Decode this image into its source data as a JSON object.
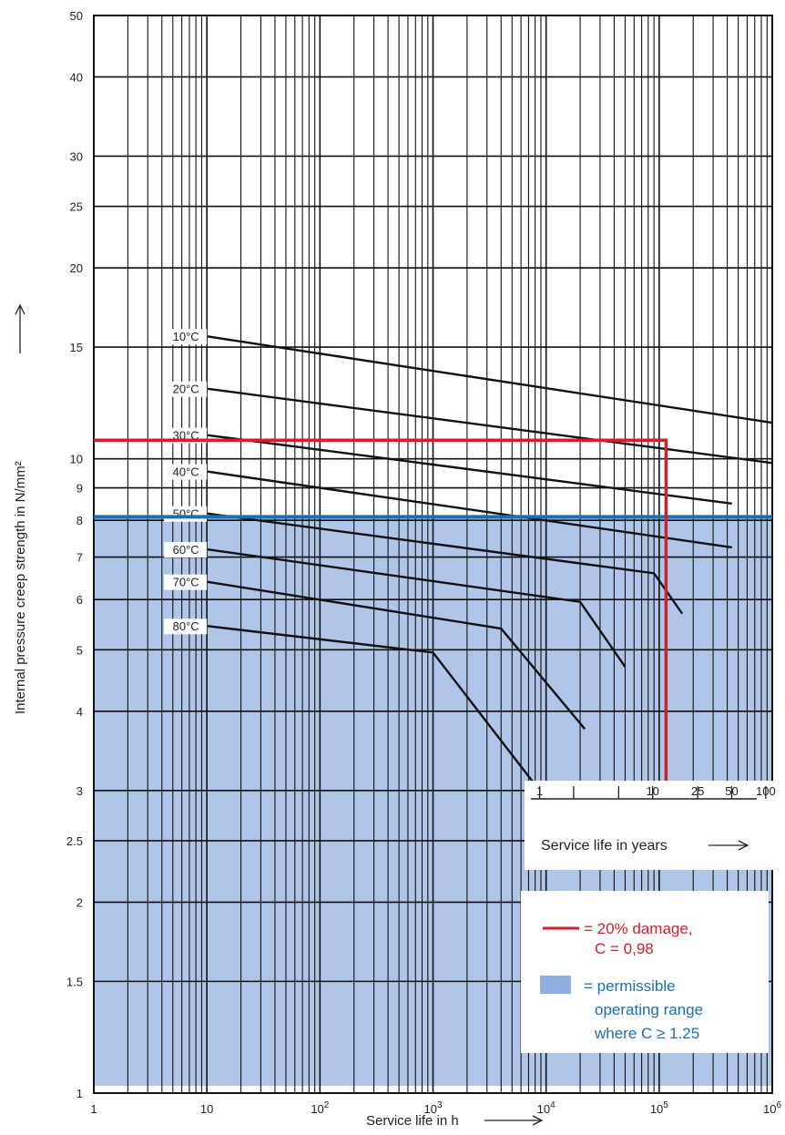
{
  "chart_data": {
    "type": "line",
    "xlabel": "Service life in h",
    "ylabel": "Internal pressure creep strength in N/mm²",
    "x_scale": "log",
    "y_scale": "log",
    "xlim": [
      1,
      1000000
    ],
    "ylim": [
      1,
      50
    ],
    "grid": true,
    "x_major_ticks": [
      1,
      10,
      100,
      1000,
      10000,
      100000,
      1000000
    ],
    "x_tick_labels": [
      {
        "base": "1",
        "exp": ""
      },
      {
        "base": "10",
        "exp": ""
      },
      {
        "base": "10",
        "exp": "2"
      },
      {
        "base": "10",
        "exp": "3"
      },
      {
        "base": "10",
        "exp": "4"
      },
      {
        "base": "10",
        "exp": "5"
      },
      {
        "base": "10",
        "exp": "6"
      }
    ],
    "y_ticks": [
      1,
      1.5,
      2,
      2.5,
      3,
      4,
      5,
      6,
      7,
      8,
      9,
      10,
      15,
      20,
      25,
      30,
      40,
      50
    ],
    "y_tick_labels": [
      "1",
      "1.5",
      "2",
      "2.5",
      "3",
      "4",
      "5",
      "6",
      "7",
      "8",
      "9",
      "10",
      "15",
      "20",
      "25",
      "30",
      "40",
      "50"
    ],
    "series": [
      {
        "name": "10°C",
        "points": [
          [
            10,
            15.6
          ],
          [
            1000000,
            11.4
          ]
        ]
      },
      {
        "name": "20°C",
        "points": [
          [
            10,
            12.9
          ],
          [
            1000000,
            9.85
          ]
        ]
      },
      {
        "name": "30°C",
        "points": [
          [
            10,
            10.9
          ],
          [
            440000,
            8.5
          ]
        ]
      },
      {
        "name": "40°C",
        "points": [
          [
            10,
            9.55
          ],
          [
            440000,
            7.25
          ]
        ]
      },
      {
        "name": "50°C",
        "points": [
          [
            10,
            8.2
          ],
          [
            90000,
            6.6
          ],
          [
            160000,
            5.7
          ]
        ]
      },
      {
        "name": "60°C",
        "points": [
          [
            10,
            7.2
          ],
          [
            20000,
            5.95
          ],
          [
            50000,
            4.7
          ]
        ]
      },
      {
        "name": "70°C",
        "points": [
          [
            10,
            6.4
          ],
          [
            4000,
            5.4
          ],
          [
            22000,
            3.75
          ]
        ]
      },
      {
        "name": "80°C",
        "points": [
          [
            10,
            5.45
          ],
          [
            1000,
            4.95
          ],
          [
            8500,
            3.02
          ]
        ]
      }
    ],
    "damage_line": {
      "y": 10.7,
      "x": 115000
    },
    "permissible_limit": {
      "y": 8.1
    },
    "years_axis": {
      "label": "Service life in years",
      "ticks": [
        {
          "years": 1,
          "label": "1"
        },
        {
          "years": 2,
          "label": ""
        },
        {
          "years": 5,
          "label": ""
        },
        {
          "years": 10,
          "label": "10"
        },
        {
          "years": 25,
          "label": "25"
        },
        {
          "years": 50,
          "label": "50"
        },
        {
          "years": 100,
          "label": "100"
        }
      ]
    },
    "legend": {
      "damage_text": [
        "= 20% damage,",
        "C = 0,98"
      ],
      "range_text": [
        "= permissible",
        "operating range",
        "where C ≥ 1.25"
      ]
    },
    "colors": {
      "curve": "#111111",
      "grid": "#111111",
      "damage": "#d0202a",
      "limit": "#1a6eb5",
      "region": "#b0c6e8"
    }
  }
}
